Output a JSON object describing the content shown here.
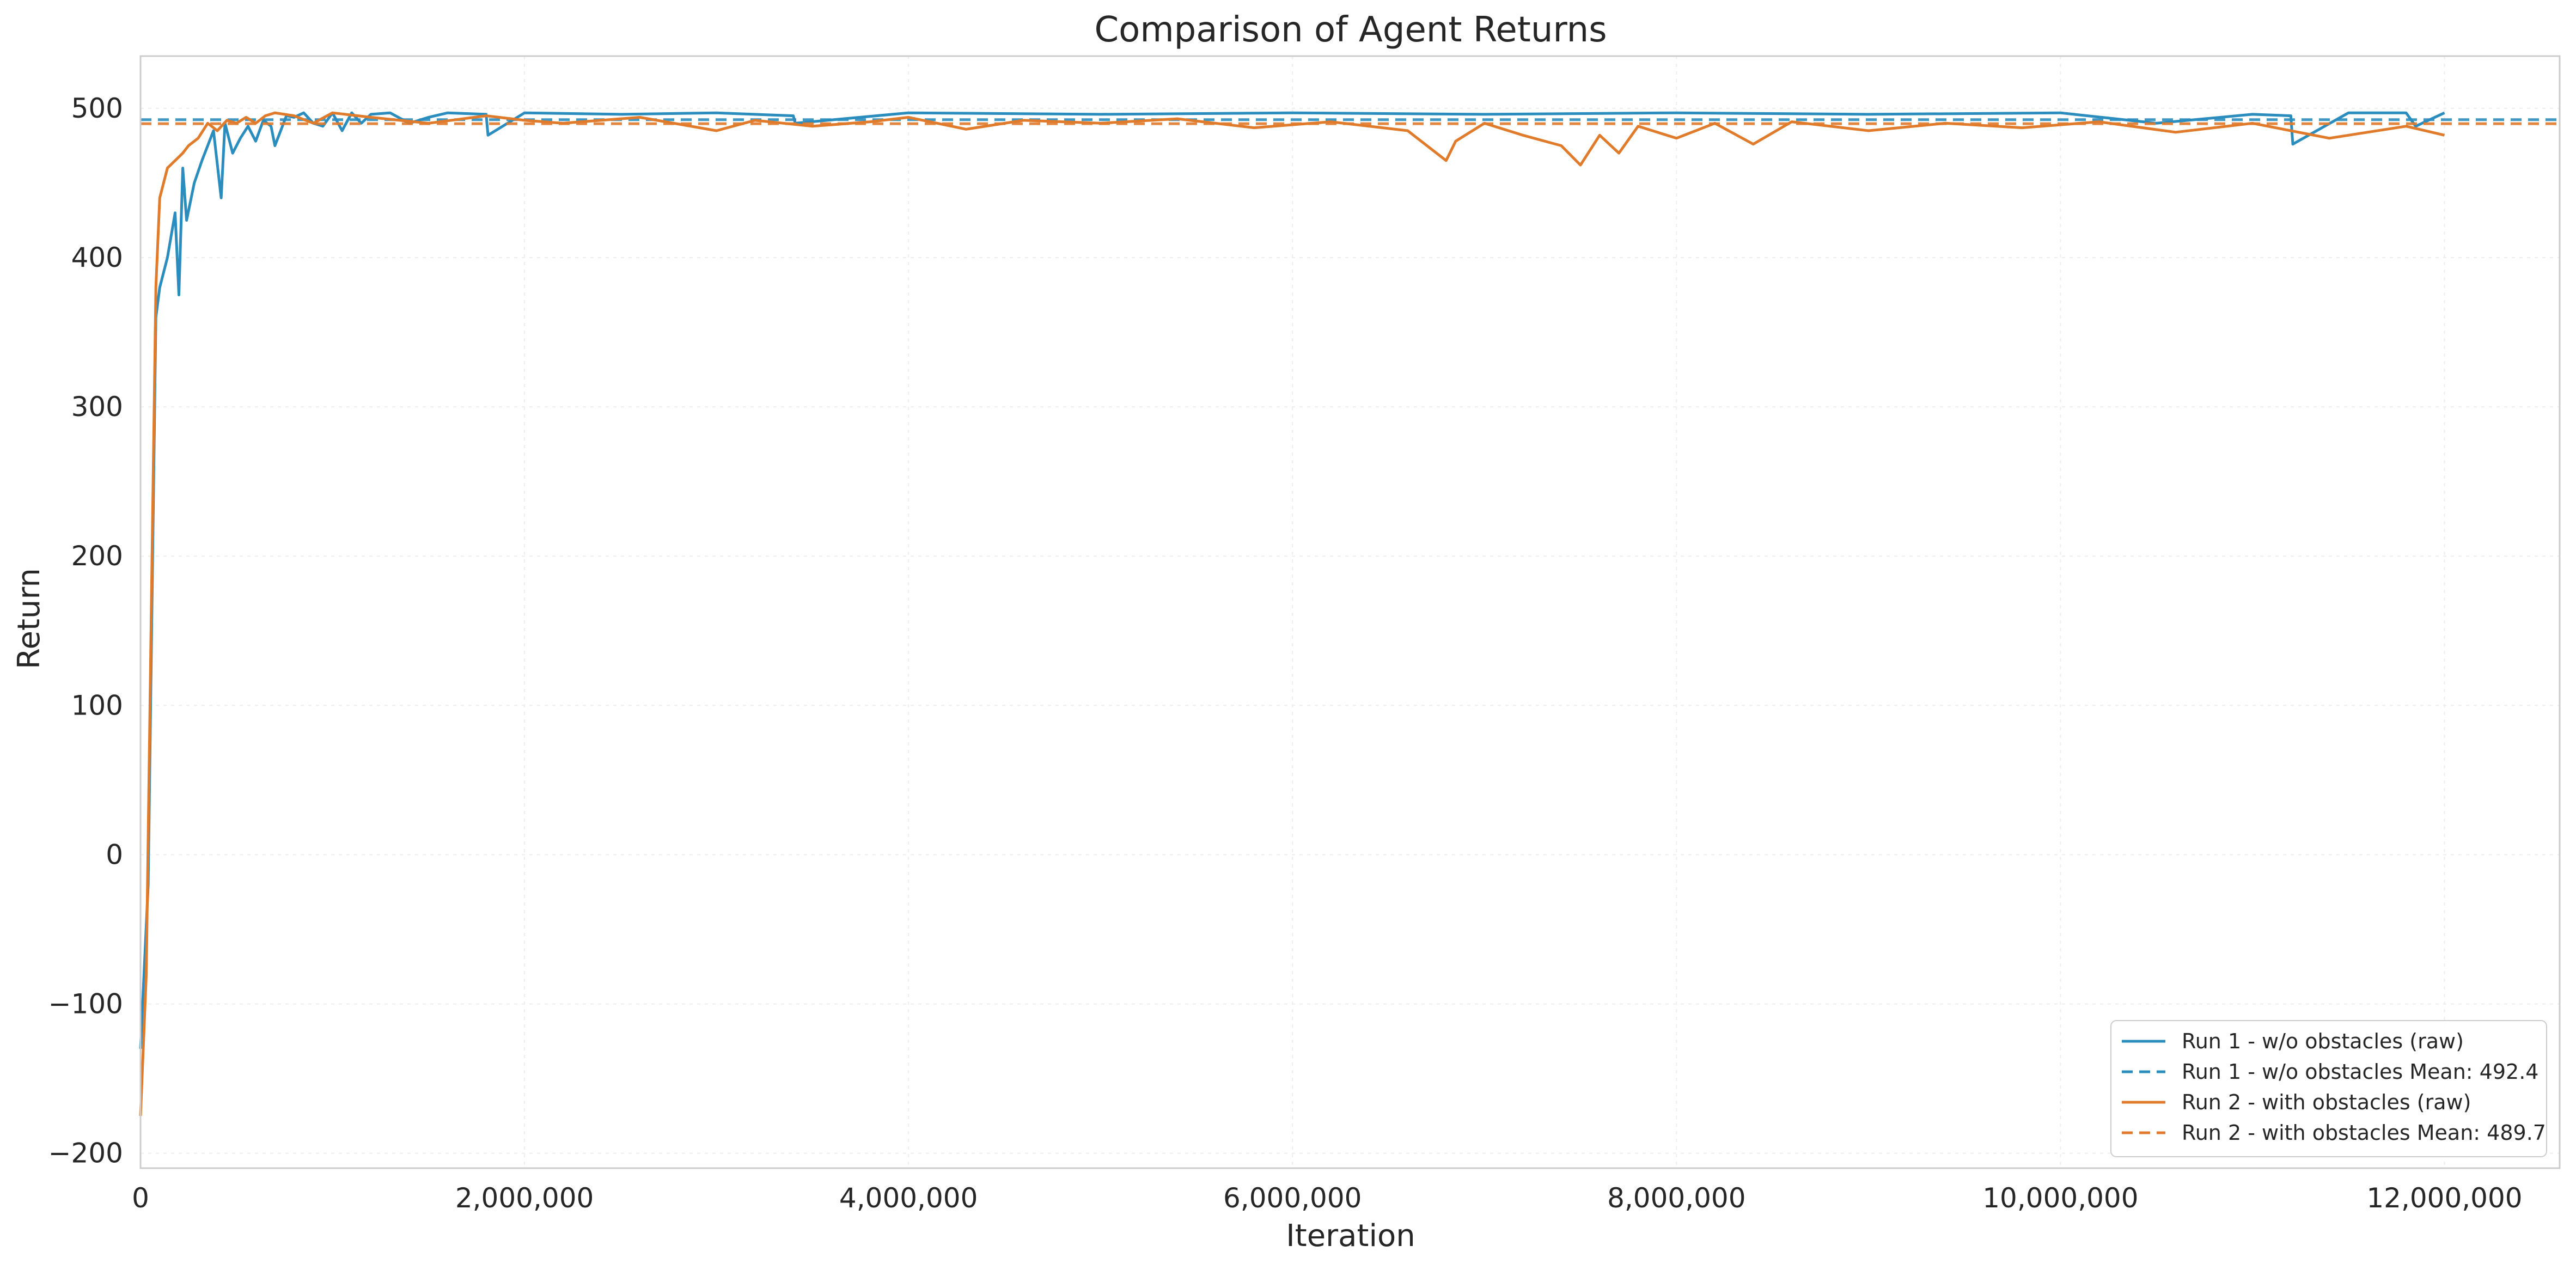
{
  "chart_data": {
    "type": "line",
    "title": "Comparison of Agent Returns",
    "xlabel": "Iteration",
    "ylabel": "Return",
    "xlim": [
      0,
      12600000
    ],
    "ylim": [
      -210,
      535
    ],
    "x_ticks": [
      0,
      2000000,
      4000000,
      6000000,
      8000000,
      10000000,
      12000000
    ],
    "x_tick_labels": [
      "0",
      "2,000,000",
      "4,000,000",
      "6,000,000",
      "8,000,000",
      "10,000,000",
      "12,000,000"
    ],
    "y_ticks": [
      -200,
      -100,
      0,
      100,
      200,
      300,
      400,
      500
    ],
    "y_tick_labels": [
      "−200",
      "−100",
      "0",
      "100",
      "200",
      "300",
      "400",
      "500"
    ],
    "grid": true,
    "legend_position": "bottom-right",
    "series": [
      {
        "name": "Run 1 - w/o obstacles (raw)",
        "color": "#2b8cbe",
        "style": "solid",
        "x": [
          0,
          40000,
          80000,
          100000,
          140000,
          180000,
          200000,
          220000,
          240000,
          280000,
          320000,
          350000,
          380000,
          420000,
          440000,
          480000,
          520000,
          560000,
          600000,
          640000,
          680000,
          700000,
          760000,
          800000,
          850000,
          900000,
          950000,
          1000000,
          1050000,
          1100000,
          1150000,
          1200000,
          1300000,
          1400000,
          1500000,
          1600000,
          1800000,
          1810000,
          2000000,
          2500000,
          3000000,
          3400000,
          3410000,
          4000000,
          5000000,
          6000000,
          7000000,
          8000000,
          9000000,
          10000000,
          10500000,
          11000000,
          11200000,
          11210000,
          11500000,
          11800000,
          11850000,
          12000000
        ],
        "y": [
          -130,
          -20,
          360,
          380,
          400,
          430,
          375,
          460,
          425,
          450,
          465,
          475,
          485,
          440,
          490,
          470,
          480,
          488,
          478,
          492,
          488,
          475,
          495,
          494,
          497,
          490,
          488,
          497,
          485,
          497,
          490,
          496,
          497,
          490,
          494,
          497,
          496,
          482,
          497,
          496,
          497,
          495,
          490,
          497,
          496,
          497,
          496,
          497,
          496,
          497,
          490,
          496,
          495,
          476,
          497,
          497,
          488,
          497
        ]
      },
      {
        "name": "Run 1 - w/o obstacles Mean: 492.4",
        "color": "#2b8cbe",
        "style": "dashed",
        "mean": 492.4
      },
      {
        "name": "Run 2 - with obstacles (raw)",
        "color": "#e07b2c",
        "style": "solid",
        "x": [
          0,
          30000,
          60000,
          80000,
          100000,
          140000,
          180000,
          220000,
          250000,
          300000,
          350000,
          400000,
          450000,
          500000,
          550000,
          600000,
          650000,
          700000,
          800000,
          900000,
          1000000,
          1200000,
          1500000,
          1800000,
          2000000,
          2200000,
          2600000,
          3000000,
          3200000,
          3500000,
          3800000,
          4000000,
          4300000,
          4600000,
          5000000,
          5400000,
          5800000,
          6200000,
          6600000,
          6800000,
          6850000,
          7000000,
          7200000,
          7400000,
          7500000,
          7600000,
          7700000,
          7800000,
          8000000,
          8200000,
          8400000,
          8600000,
          9000000,
          9400000,
          9800000,
          10200000,
          10600000,
          11000000,
          11400000,
          11800000,
          12000000
        ],
        "y": [
          -175,
          -80,
          200,
          380,
          440,
          460,
          465,
          470,
          475,
          480,
          490,
          485,
          492,
          490,
          494,
          490,
          495,
          497,
          495,
          490,
          497,
          494,
          490,
          495,
          492,
          490,
          494,
          485,
          492,
          488,
          491,
          494,
          486,
          492,
          490,
          493,
          487,
          491,
          485,
          465,
          478,
          490,
          482,
          475,
          462,
          482,
          470,
          488,
          480,
          490,
          476,
          491,
          485,
          490,
          487,
          491,
          484,
          490,
          480,
          488,
          482
        ]
      },
      {
        "name": "Run 2 - with obstacles Mean: 489.7",
        "color": "#e07b2c",
        "style": "dashed",
        "mean": 489.7
      }
    ]
  }
}
